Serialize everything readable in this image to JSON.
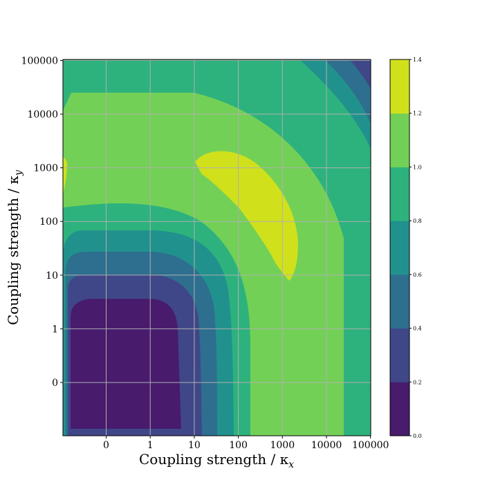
{
  "chart_data": {
    "type": "contour",
    "xlabel": "Coupling strength / κ",
    "xlabel_sub": "x",
    "ylabel": "Coupling strength / κ",
    "ylabel_sub": "y",
    "x_ticks": [
      "0",
      "1",
      "10",
      "100",
      "1000",
      "10000",
      "100000"
    ],
    "y_ticks": [
      "0",
      "1",
      "10",
      "100",
      "1000",
      "10000",
      "100000"
    ],
    "x_log10_range": [
      -2.8,
      4.0
    ],
    "y_log10_range": [
      -2.0,
      5.0
    ],
    "grid": true,
    "colorbar": {
      "ticks": [
        "0.0",
        "0.2",
        "0.4",
        "0.6",
        "0.8",
        "1.0",
        "1.2",
        "1.4"
      ],
      "levels": [
        0.0,
        0.2,
        0.4,
        0.6,
        0.8,
        1.0,
        1.2,
        1.4
      ],
      "colors": [
        "#481b6d",
        "#3f4788",
        "#2e6e8e",
        "#21918d",
        "#2db27d",
        "#73d056",
        "#d0e11c"
      ]
    },
    "regions": [
      {
        "level_range": [
          0.0,
          0.2
        ],
        "log10_x": [
          -2.7,
          -0.1
        ],
        "log10_y": [
          -1.9,
          0.9
        ]
      },
      {
        "level_range": [
          1.2,
          1.4
        ],
        "log10_x": [
          1.0,
          3.35
        ],
        "log10_y": [
          0.9,
          3.3
        ]
      },
      {
        "level_range": [
          0.6,
          0.8
        ],
        "log10_x": [
          3.3,
          4.0
        ],
        "log10_y": [
          4.0,
          5.0
        ]
      },
      {
        "level_range": [
          0.4,
          0.6
        ],
        "log10_x": [
          3.7,
          4.0
        ],
        "log10_y": [
          4.6,
          5.0
        ]
      }
    ]
  }
}
